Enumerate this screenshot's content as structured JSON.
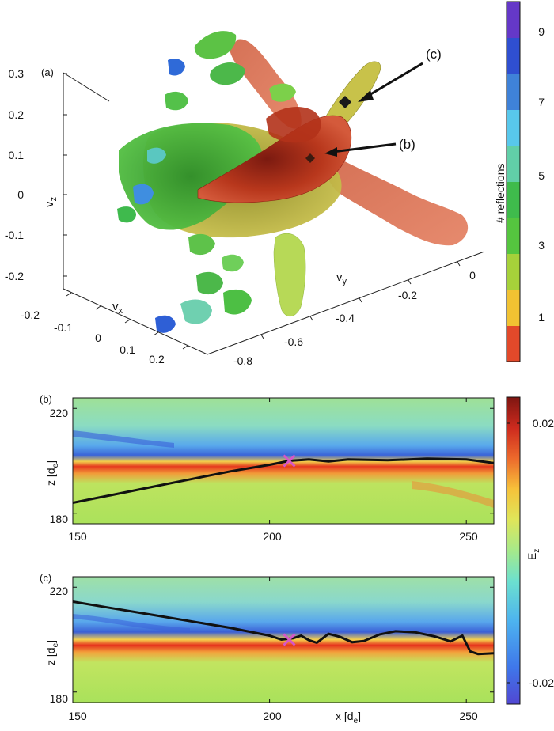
{
  "chart_data": [
    {
      "type": "scatter",
      "panel_label": "(a)",
      "subtype": "3d-isosurface",
      "xlabel": "v",
      "xlabel_sub": "x",
      "ylabel": "v",
      "ylabel_sub": "y",
      "zlabel": "v",
      "zlabel_sub": "z",
      "x_ticks": [
        "-0.2",
        "-0.1",
        "0",
        "0.1",
        "0.2"
      ],
      "y_ticks": [
        "-0.8",
        "-0.6",
        "-0.4",
        "-0.2",
        "0"
      ],
      "z_ticks": [
        "0.3",
        "0.2",
        "0.1",
        "0",
        "-0.1",
        "-0.2"
      ],
      "annotations": [
        "(b)",
        "(c)"
      ],
      "colorbar": {
        "label": "# reflections",
        "ticks": [
          "9",
          "7",
          "5",
          "3",
          "1"
        ],
        "range": [
          0,
          10
        ],
        "colors": [
          "#e2492a",
          "#f1c232",
          "#a6d13a",
          "#55c53f",
          "#3fbb4c",
          "#61cfa8",
          "#58c8ec",
          "#3f82d8",
          "#2f4fd0",
          "#6538c8"
        ]
      }
    },
    {
      "type": "heatmap",
      "panel_label": "(b)",
      "xlabel": "",
      "ylabel": "z [d",
      "ylabel_sub": "e",
      "ylabel_end": "]",
      "x_ticks": [
        150,
        200,
        250
      ],
      "y_ticks": [
        220,
        180
      ],
      "xlim": [
        150,
        257
      ],
      "ylim": [
        176,
        224
      ],
      "xpoint_marker": {
        "x": 205,
        "z": 200
      },
      "field_line": {
        "x": [
          150,
          160,
          170,
          180,
          190,
          200,
          205,
          210,
          215,
          220,
          230,
          240,
          250,
          257
        ],
        "z": [
          184,
          187,
          190,
          193,
          196,
          198.5,
          200,
          200.5,
          199.8,
          200.5,
          200.2,
          200.8,
          200.5,
          199.2
        ]
      }
    },
    {
      "type": "heatmap",
      "panel_label": "(c)",
      "xlabel": "x [d",
      "xlabel_sub": "e",
      "xlabel_end": "]",
      "ylabel": "z [d",
      "ylabel_sub": "e",
      "ylabel_end": "]",
      "x_ticks": [
        150,
        200,
        250
      ],
      "y_ticks": [
        220,
        180
      ],
      "xlim": [
        150,
        257
      ],
      "ylim": [
        176,
        224
      ],
      "xpoint_marker": {
        "x": 205,
        "z": 200
      },
      "field_line": {
        "x": [
          150,
          160,
          170,
          180,
          190,
          200,
          203,
          206,
          208,
          210,
          212,
          215,
          218,
          221,
          224,
          228,
          232,
          237,
          242,
          246,
          249,
          250,
          251,
          253,
          257
        ],
        "z": [
          214.5,
          212,
          209.5,
          207,
          204.5,
          201.5,
          200,
          200.5,
          201.5,
          199.8,
          198.8,
          202.2,
          201,
          199,
          199.5,
          202,
          203.2,
          202.8,
          201.2,
          199.3,
          201.5,
          198.5,
          195.5,
          194.5,
          194.8
        ]
      }
    },
    {
      "type": "heatmap",
      "role": "colorbar",
      "label": "E",
      "label_sub": "z",
      "ticks": [
        "0.02",
        "-0.02"
      ],
      "range": [
        -0.025,
        0.025
      ],
      "colors": [
        "#5147d2",
        "#3f77ea",
        "#4db3ef",
        "#6ce0cf",
        "#a6e98a",
        "#dfe65a",
        "#f6c23a",
        "#ed6a2c",
        "#cd2a1e",
        "#7e1611"
      ]
    }
  ]
}
